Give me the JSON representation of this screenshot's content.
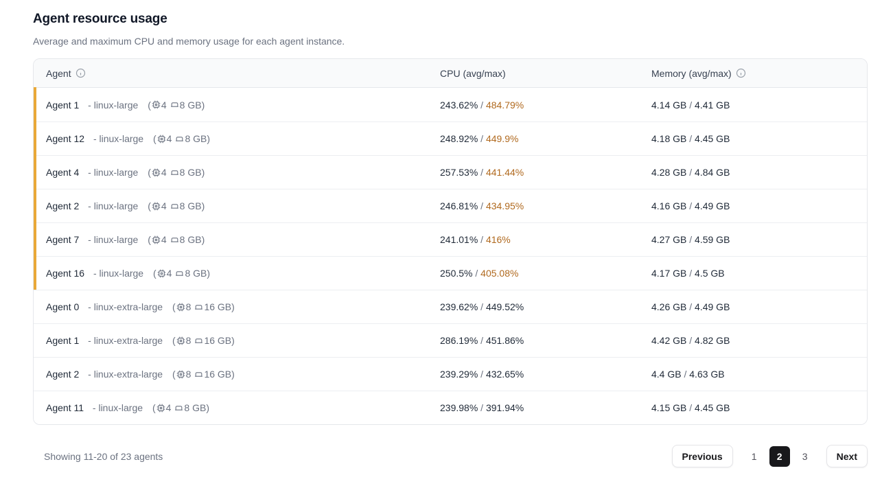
{
  "page": {
    "title": "Agent resource usage",
    "subtitle": "Average and maximum CPU and memory usage for each agent instance."
  },
  "table": {
    "columns": {
      "agent": "Agent",
      "cpu": "CPU (avg/max)",
      "memory": "Memory (avg/max)"
    },
    "rows": [
      {
        "name": "Agent 1",
        "instance": "- linux-large",
        "cpus": "4",
        "ram": "8 GB",
        "cpu_avg": "243.62%",
        "cpu_max": "484.79%",
        "cpu_max_highlight": true,
        "mem_avg": "4.14 GB",
        "mem_max": "4.41 GB",
        "accent": true
      },
      {
        "name": "Agent 12",
        "instance": "- linux-large",
        "cpus": "4",
        "ram": "8 GB",
        "cpu_avg": "248.92%",
        "cpu_max": "449.9%",
        "cpu_max_highlight": true,
        "mem_avg": "4.18 GB",
        "mem_max": "4.45 GB",
        "accent": true
      },
      {
        "name": "Agent 4",
        "instance": "- linux-large",
        "cpus": "4",
        "ram": "8 GB",
        "cpu_avg": "257.53%",
        "cpu_max": "441.44%",
        "cpu_max_highlight": true,
        "mem_avg": "4.28 GB",
        "mem_max": "4.84 GB",
        "accent": true
      },
      {
        "name": "Agent 2",
        "instance": "- linux-large",
        "cpus": "4",
        "ram": "8 GB",
        "cpu_avg": "246.81%",
        "cpu_max": "434.95%",
        "cpu_max_highlight": true,
        "mem_avg": "4.16 GB",
        "mem_max": "4.49 GB",
        "accent": true
      },
      {
        "name": "Agent 7",
        "instance": "- linux-large",
        "cpus": "4",
        "ram": "8 GB",
        "cpu_avg": "241.01%",
        "cpu_max": "416%",
        "cpu_max_highlight": true,
        "mem_avg": "4.27 GB",
        "mem_max": "4.59 GB",
        "accent": true
      },
      {
        "name": "Agent 16",
        "instance": "- linux-large",
        "cpus": "4",
        "ram": "8 GB",
        "cpu_avg": "250.5%",
        "cpu_max": "405.08%",
        "cpu_max_highlight": true,
        "mem_avg": "4.17 GB",
        "mem_max": "4.5 GB",
        "accent": true
      },
      {
        "name": "Agent 0",
        "instance": "- linux-extra-large",
        "cpus": "8",
        "ram": "16 GB",
        "cpu_avg": "239.62%",
        "cpu_max": "449.52%",
        "cpu_max_highlight": false,
        "mem_avg": "4.26 GB",
        "mem_max": "4.49 GB",
        "accent": false
      },
      {
        "name": "Agent 1",
        "instance": "- linux-extra-large",
        "cpus": "8",
        "ram": "16 GB",
        "cpu_avg": "286.19%",
        "cpu_max": "451.86%",
        "cpu_max_highlight": false,
        "mem_avg": "4.42 GB",
        "mem_max": "4.82 GB",
        "accent": false
      },
      {
        "name": "Agent 2",
        "instance": "- linux-extra-large",
        "cpus": "8",
        "ram": "16 GB",
        "cpu_avg": "239.29%",
        "cpu_max": "432.65%",
        "cpu_max_highlight": false,
        "mem_avg": "4.4 GB",
        "mem_max": "4.63 GB",
        "accent": false
      },
      {
        "name": "Agent 11",
        "instance": "- linux-large",
        "cpus": "4",
        "ram": "8 GB",
        "cpu_avg": "239.98%",
        "cpu_max": "391.94%",
        "cpu_max_highlight": false,
        "mem_avg": "4.15 GB",
        "mem_max": "4.45 GB",
        "accent": false
      }
    ],
    "separator": "/"
  },
  "footer": {
    "summary": "Showing 11-20 of 23 agents"
  },
  "pagination": {
    "previous_label": "Previous",
    "next_label": "Next",
    "pages": [
      {
        "label": "1",
        "active": false
      },
      {
        "label": "2",
        "active": true
      },
      {
        "label": "3",
        "active": false
      }
    ]
  },
  "colors": {
    "accent_bar": "#e9a838",
    "cpu_max_highlight": "#b0691e",
    "active_page_bg": "#18181b"
  }
}
